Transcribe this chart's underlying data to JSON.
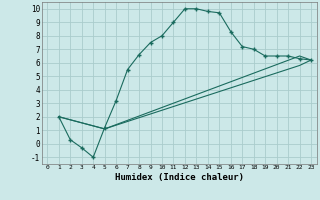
{
  "xlabel": "Humidex (Indice chaleur)",
  "xlim": [
    -0.5,
    23.5
  ],
  "ylim": [
    -1.5,
    10.5
  ],
  "xticks": [
    0,
    1,
    2,
    3,
    4,
    5,
    6,
    7,
    8,
    9,
    10,
    11,
    12,
    13,
    14,
    15,
    16,
    17,
    18,
    19,
    20,
    21,
    22,
    23
  ],
  "yticks": [
    -1,
    0,
    1,
    2,
    3,
    4,
    5,
    6,
    7,
    8,
    9,
    10
  ],
  "background_color": "#cce8e8",
  "grid_color": "#aacccc",
  "line_color": "#1a6b5e",
  "line1_x": [
    1,
    2,
    3,
    4,
    5,
    6,
    7,
    8,
    9,
    10,
    11,
    12,
    13,
    14,
    15,
    16,
    17,
    18,
    19,
    20,
    21,
    22,
    23
  ],
  "line1_y": [
    2.0,
    0.3,
    -0.3,
    -1.0,
    1.2,
    3.2,
    5.5,
    6.6,
    7.5,
    8.0,
    9.0,
    10.0,
    10.0,
    9.8,
    9.7,
    8.3,
    7.2,
    7.0,
    6.5,
    6.5,
    6.5,
    6.3,
    6.2
  ],
  "line2_x": [
    1,
    5,
    22,
    23
  ],
  "line2_y": [
    2.0,
    1.1,
    6.5,
    6.2
  ],
  "line3_x": [
    1,
    5,
    22,
    23
  ],
  "line3_y": [
    2.0,
    1.1,
    5.8,
    6.2
  ]
}
